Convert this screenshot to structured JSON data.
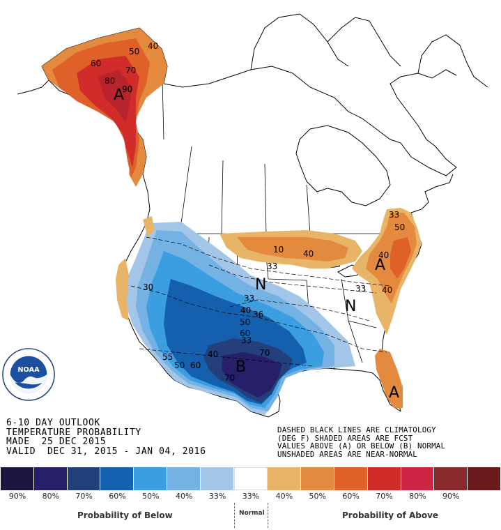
{
  "map": {
    "contour_labels": [
      "50",
      "40",
      "60",
      "70",
      "80",
      "90",
      "10",
      "33",
      "40",
      "33",
      "40",
      "50",
      "60",
      "33",
      "36",
      "30",
      "55",
      "50",
      "60",
      "40",
      "70",
      "70",
      "40",
      "50",
      "33",
      "40",
      "33"
    ],
    "category_letters": [
      "A",
      "A",
      "A",
      "B",
      "N",
      "N"
    ]
  },
  "logo": {
    "name": "NOAA",
    "ring_text": "NATIONAL OCEANIC AND ATMOSPHERIC ADMINISTRATION · U.S. DEPARTMENT OF COMMERCE"
  },
  "title": {
    "line1": "6-10 DAY OUTLOOK",
    "line2": "TEMPERATURE PROBABILITY",
    "line3": "MADE  25 DEC 2015",
    "line4": "VALID  DEC 31, 2015 - JAN 04, 2016"
  },
  "notes": {
    "line1": "DASHED BLACK LINES ARE CLIMATOLOGY",
    "line2": "(DEG F) SHADED AREAS ARE FCST",
    "line3": "VALUES ABOVE (A) OR BELOW (B) NORMAL",
    "line4": "UNSHADED AREAS ARE NEAR-NORMAL"
  },
  "legend": {
    "colors": [
      "#1c1640",
      "#26206a",
      "#23407d",
      "#1560ae",
      "#3b9ee0",
      "#74b2e4",
      "#a3c6e8",
      "#ffffff",
      "#e7b468",
      "#e48a3f",
      "#e0602a",
      "#d12c2a",
      "#cf2443",
      "#8b2a2e",
      "#6a1a1a"
    ],
    "labels": [
      "90%",
      "80%",
      "70%",
      "60%",
      "50%",
      "40%",
      "33%",
      "33%",
      "40%",
      "50%",
      "60%",
      "70%",
      "80%",
      "90%"
    ],
    "below_caption": "Probability of Below",
    "normal_caption": "Normal",
    "above_caption": "Probability of Above"
  }
}
